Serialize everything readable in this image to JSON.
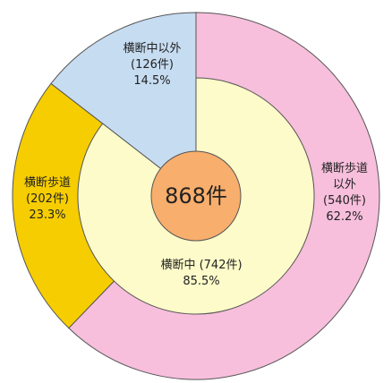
{
  "chart_data": {
    "type": "donut",
    "total": {
      "value": 868,
      "label": "868件"
    },
    "outer": {
      "categories": [
        "横断歩道以外",
        "横断歩道",
        "横断中以外"
      ],
      "values": [
        540,
        202,
        126
      ],
      "value_labels": [
        "(540件)",
        "(202件)",
        "(126件)"
      ],
      "percents": [
        62.2,
        23.3,
        14.5
      ],
      "percent_labels": [
        "62.2%",
        "23.3%",
        "14.5%"
      ],
      "colors": [
        "#f7bfdc",
        "#f6cd00",
        "#c6dcf1"
      ]
    },
    "inner": {
      "categories": [
        "横断中"
      ],
      "values": [
        742
      ],
      "value_labels": [
        "(742件)"
      ],
      "percents": [
        85.5
      ],
      "percent_labels": [
        "85.5%"
      ],
      "colors": [
        "#fdfbc9"
      ]
    },
    "center_color": "#f8ae6c"
  }
}
